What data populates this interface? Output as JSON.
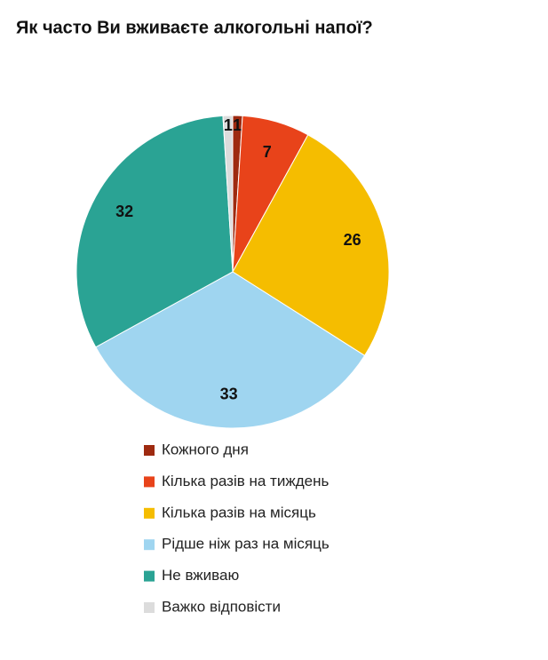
{
  "chart_data": {
    "type": "pie",
    "title": "Як часто Ви вживаєте алкогольні напої?",
    "categories": [
      "Кожного дня",
      "Кілька разів на тиждень",
      "Кілька разів на місяць",
      "Рідше ніж раз на місяць",
      "Не вживаю",
      "Важко відповісти"
    ],
    "values": [
      1,
      7,
      26,
      33,
      32,
      1
    ],
    "colors": [
      "#9e2a10",
      "#e8431a",
      "#f5bd00",
      "#9fd5f0",
      "#2aa394",
      "#dcdcdc"
    ],
    "legend": "bottom"
  }
}
